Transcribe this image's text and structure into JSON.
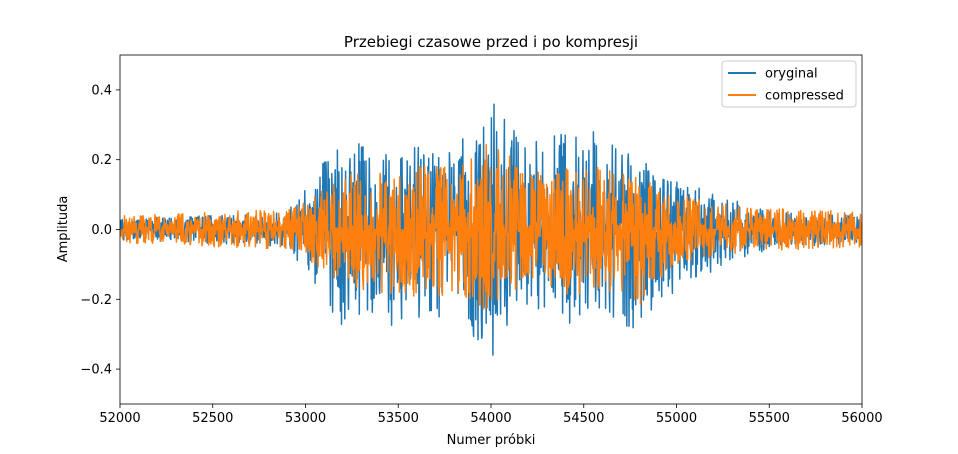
{
  "chart_data": {
    "type": "line",
    "title": "Przebiegi czasowe przed i po kompresji",
    "xlabel": "Numer próbki",
    "ylabel": "Amplituda",
    "xlim": [
      52000,
      56000
    ],
    "ylim": [
      -0.5,
      0.5
    ],
    "xticks": [
      52000,
      52500,
      53000,
      53500,
      54000,
      54500,
      55000,
      55500,
      56000
    ],
    "xtick_labels": [
      "52000",
      "52500",
      "53000",
      "53500",
      "54000",
      "54500",
      "55000",
      "55500",
      "56000"
    ],
    "yticks": [
      -0.4,
      -0.2,
      0.0,
      0.2,
      0.4
    ],
    "ytick_labels": [
      "−0.4",
      "−0.2",
      "0.0",
      "0.2",
      "0.4"
    ],
    "grid": false,
    "legend_position": "top-right",
    "series": [
      {
        "name": "oryginal",
        "color": "#1f77b4",
        "envelope_x": [
          52000,
          52500,
          52900,
          53000,
          53200,
          53400,
          53600,
          53800,
          54000,
          54200,
          54400,
          54600,
          54800,
          55000,
          55200,
          55400,
          55600,
          56000
        ],
        "envelope_max": [
          0.03,
          0.04,
          0.05,
          0.12,
          0.28,
          0.22,
          0.24,
          0.26,
          0.37,
          0.25,
          0.3,
          0.28,
          0.22,
          0.15,
          0.1,
          0.07,
          0.05,
          0.04
        ],
        "envelope_min": [
          -0.03,
          -0.04,
          -0.05,
          -0.13,
          -0.28,
          -0.29,
          -0.25,
          -0.27,
          -0.37,
          -0.23,
          -0.27,
          -0.26,
          -0.3,
          -0.17,
          -0.12,
          -0.07,
          -0.05,
          -0.04
        ]
      },
      {
        "name": "compressed",
        "color": "#ff7f0e",
        "envelope_x": [
          52000,
          52500,
          52900,
          53000,
          53200,
          53400,
          53600,
          53800,
          54000,
          54200,
          54400,
          54600,
          54800,
          55000,
          55200,
          55400,
          55600,
          56000
        ],
        "envelope_max": [
          0.04,
          0.05,
          0.06,
          0.08,
          0.16,
          0.17,
          0.18,
          0.18,
          0.27,
          0.16,
          0.18,
          0.18,
          0.15,
          0.1,
          0.08,
          0.06,
          0.06,
          0.05
        ],
        "envelope_min": [
          -0.04,
          -0.05,
          -0.06,
          -0.08,
          -0.17,
          -0.18,
          -0.21,
          -0.18,
          -0.26,
          -0.16,
          -0.19,
          -0.18,
          -0.22,
          -0.1,
          -0.08,
          -0.06,
          -0.06,
          -0.05
        ]
      }
    ]
  }
}
